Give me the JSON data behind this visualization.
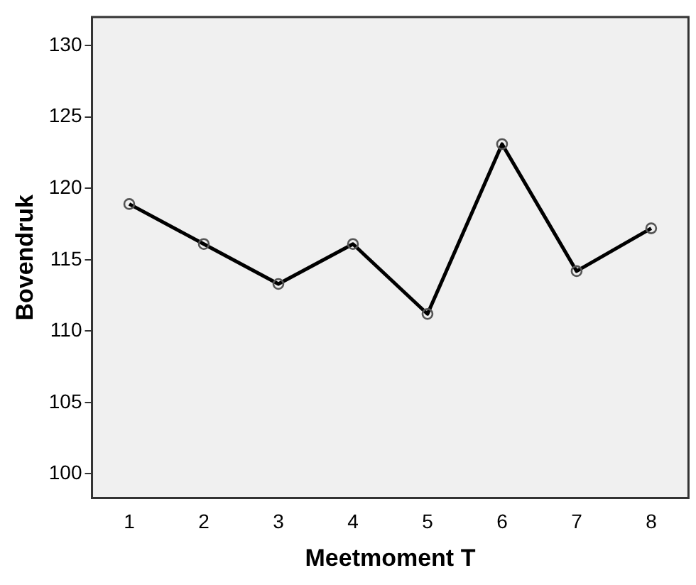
{
  "chart_data": {
    "type": "line",
    "xlabel": "Meetmoment T",
    "ylabel": "Bovendruk",
    "categories": [
      "1",
      "2",
      "3",
      "4",
      "5",
      "6",
      "7",
      "8"
    ],
    "series": [
      {
        "color": "#000000",
        "values": [
          118.9,
          116.1,
          113.3,
          116.1,
          111.2,
          123.1,
          114.2,
          117.2
        ]
      }
    ],
    "ylim": [
      98.3,
      132
    ],
    "yticks": [
      100,
      105,
      110,
      115,
      120,
      125,
      130
    ],
    "grid": false,
    "legend": false,
    "marker": "circle",
    "line_style": "solid"
  }
}
